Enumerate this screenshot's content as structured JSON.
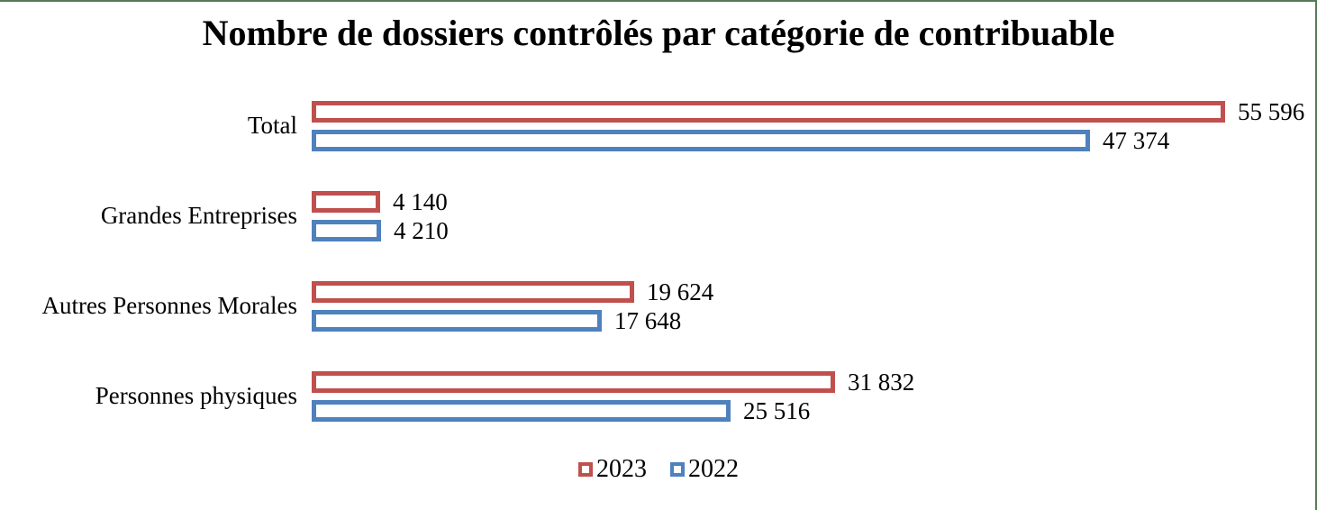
{
  "page": {
    "frame_border_color": "#557A57"
  },
  "chart_data": {
    "type": "bar",
    "orientation": "horizontal",
    "title": "Nombre de dossiers contrôlés par catégorie de contribuable",
    "categories": [
      "Total",
      "Grandes Entreprises",
      "Autres Personnes Morales",
      "Personnes physiques"
    ],
    "series": [
      {
        "name": "2023",
        "color": "#C0504D",
        "values": [
          55596,
          4140,
          19624,
          31832
        ],
        "labels": [
          "55 596",
          "4 140",
          "19 624",
          "31 832"
        ]
      },
      {
        "name": "2022",
        "color": "#4F81BD",
        "values": [
          47374,
          4210,
          17648,
          25516
        ],
        "labels": [
          "47 374",
          "4 210",
          "17 648",
          "25 516"
        ]
      }
    ],
    "bar_style": "hollow-outline",
    "value_labels": "outside-end",
    "xlim": [
      0,
      55596
    ],
    "grid": false,
    "axis_lines": false,
    "legend_position": "bottom-center"
  }
}
